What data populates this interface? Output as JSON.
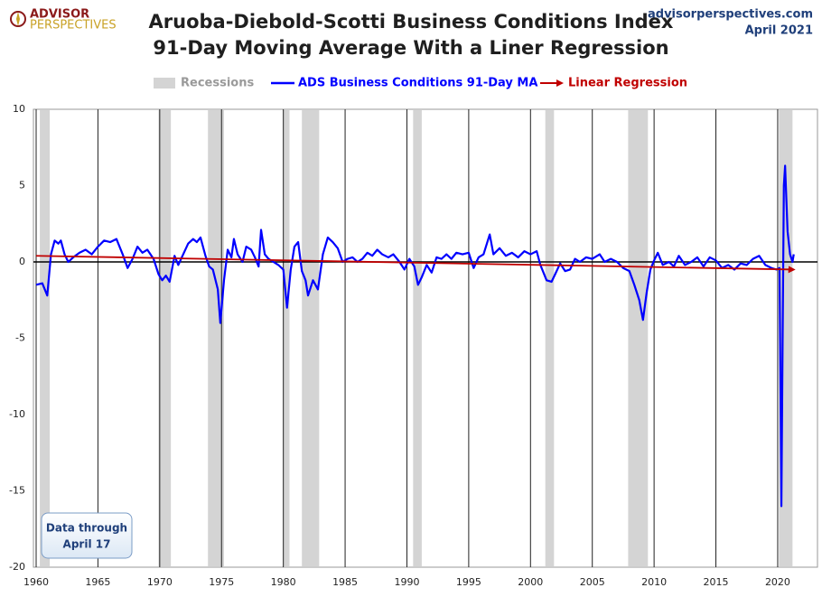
{
  "chart_data": {
    "type": "line",
    "title": "Aruoba-Diebold-Scotti Business Conditions Index",
    "subtitle": "91-Day Moving Average With a Liner Regression",
    "logo": [
      "ADVISOR",
      "PERSPECTIVES"
    ],
    "source": "advisorperspectives.com",
    "date": "April 2021",
    "annotation": [
      "Data through",
      "April 17"
    ],
    "recessions": {
      "name": "Recessions",
      "color": "#d4d4d4",
      "periods": [
        [
          1960.3,
          1961.1
        ],
        [
          1969.9,
          1970.9
        ],
        [
          1973.9,
          1975.2
        ],
        [
          1980.0,
          1980.5
        ],
        [
          1981.5,
          1982.9
        ],
        [
          1990.5,
          1991.2
        ],
        [
          2001.2,
          2001.9
        ],
        [
          2007.9,
          2009.5
        ],
        [
          2020.1,
          2021.2
        ]
      ]
    },
    "series": [
      {
        "name": "ADS Business Conditions 91-Day MA",
        "color": "#0000ff",
        "x": [
          1960.0,
          1960.5,
          1960.9,
          1961.2,
          1961.5,
          1961.8,
          1962.0,
          1962.3,
          1962.6,
          1963.0,
          1963.5,
          1964.0,
          1964.5,
          1965.0,
          1965.5,
          1966.0,
          1966.5,
          1967.0,
          1967.4,
          1967.8,
          1968.2,
          1968.6,
          1969.0,
          1969.5,
          1969.9,
          1970.2,
          1970.5,
          1970.8,
          1971.2,
          1971.5,
          1971.9,
          1972.3,
          1972.7,
          1973.0,
          1973.3,
          1973.7,
          1974.0,
          1974.3,
          1974.7,
          1974.9,
          1975.2,
          1975.5,
          1975.8,
          1976.0,
          1976.3,
          1976.7,
          1977.0,
          1977.4,
          1977.7,
          1978.0,
          1978.2,
          1978.5,
          1978.8,
          1979.2,
          1979.6,
          1980.0,
          1980.3,
          1980.6,
          1980.9,
          1981.2,
          1981.5,
          1981.8,
          1982.0,
          1982.4,
          1982.8,
          1983.2,
          1983.6,
          1984.0,
          1984.4,
          1984.8,
          1985.2,
          1985.6,
          1986.0,
          1986.4,
          1986.8,
          1987.2,
          1987.6,
          1988.0,
          1988.5,
          1988.9,
          1989.4,
          1989.8,
          1990.2,
          1990.6,
          1990.9,
          1991.2,
          1991.6,
          1992.0,
          1992.4,
          1992.8,
          1993.2,
          1993.6,
          1994.0,
          1994.5,
          1995.0,
          1995.4,
          1995.8,
          1996.2,
          1996.7,
          1997.0,
          1997.5,
          1998.0,
          1998.5,
          1999.0,
          1999.5,
          2000.0,
          2000.5,
          2000.8,
          2001.3,
          2001.7,
          2002.0,
          2002.4,
          2002.8,
          2003.2,
          2003.6,
          2004.0,
          2004.5,
          2005.0,
          2005.6,
          2006.0,
          2006.5,
          2007.0,
          2007.5,
          2008.0,
          2008.4,
          2008.8,
          2009.1,
          2009.4,
          2009.7,
          2010.0,
          2010.3,
          2010.7,
          2011.2,
          2011.6,
          2012.0,
          2012.5,
          2013.0,
          2013.5,
          2014.0,
          2014.5,
          2015.0,
          2015.5,
          2016.0,
          2016.5,
          2017.0,
          2017.5,
          2018.0,
          2018.5,
          2019.0,
          2019.5,
          2019.9,
          2020.15,
          2020.3,
          2020.4,
          2020.5,
          2020.6,
          2020.8,
          2021.0,
          2021.2,
          2021.3
        ],
        "values": [
          -1.5,
          -1.4,
          -2.2,
          0.5,
          1.4,
          1.2,
          1.4,
          0.5,
          0,
          0.3,
          0.6,
          0.8,
          0.5,
          1.0,
          1.4,
          1.3,
          1.5,
          0.5,
          -0.4,
          0.2,
          1.0,
          0.6,
          0.8,
          0.2,
          -0.8,
          -1.2,
          -0.9,
          -1.3,
          0.4,
          -0.2,
          0.5,
          1.2,
          1.5,
          1.3,
          1.6,
          0.4,
          -0.3,
          -0.5,
          -1.8,
          -4.0,
          -1.2,
          0.8,
          0.3,
          1.5,
          0.5,
          0,
          1.0,
          0.8,
          0.3,
          -0.3,
          2.1,
          0.5,
          0.2,
          0,
          -0.2,
          -0.5,
          -3.0,
          -0.5,
          1.0,
          1.3,
          -0.6,
          -1.2,
          -2.2,
          -1.2,
          -1.8,
          0.5,
          1.6,
          1.3,
          0.9,
          0,
          0.2,
          0.3,
          0,
          0.2,
          0.6,
          0.4,
          0.8,
          0.5,
          0.3,
          0.5,
          0,
          -0.5,
          0.2,
          -0.3,
          -1.5,
          -1.0,
          -0.2,
          -0.7,
          0.3,
          0.2,
          0.5,
          0.2,
          0.6,
          0.5,
          0.6,
          -0.4,
          0.3,
          0.5,
          1.8,
          0.5,
          0.9,
          0.4,
          0.6,
          0.3,
          0.7,
          0.5,
          0.7,
          -0.2,
          -1.2,
          -1.3,
          -0.8,
          -0.1,
          -0.6,
          -0.5,
          0.2,
          0,
          0.3,
          0.2,
          0.5,
          0,
          0.2,
          0,
          -0.4,
          -0.6,
          -1.5,
          -2.5,
          -3.8,
          -2.0,
          -0.5,
          0.1,
          0.6,
          -0.2,
          0,
          -0.3,
          0.4,
          -0.2,
          0,
          0.3,
          -0.3,
          0.3,
          0.1,
          -0.4,
          -0.2,
          -0.5,
          -0.1,
          -0.2,
          0.2,
          0.4,
          -0.2,
          -0.4,
          -0.5,
          -0.4,
          -16.0,
          -5,
          5.0,
          6.3,
          2.0,
          0.5,
          0,
          0.5
        ]
      },
      {
        "name": "Linear Regression",
        "color": "#c00000",
        "x": [
          1960.0,
          2021.3
        ],
        "values": [
          0.4,
          -0.5
        ]
      }
    ],
    "xlim": [
      1959.78,
      2023.22
    ],
    "xticks": [
      1960,
      1965,
      1970,
      1975,
      1980,
      1985,
      1990,
      1995,
      2000,
      2005,
      2010,
      2015,
      2020
    ],
    "ylim": [
      -20,
      10
    ],
    "yticks": [
      -20,
      -15,
      -10,
      -5,
      0,
      5,
      10
    ],
    "grid": "x"
  }
}
